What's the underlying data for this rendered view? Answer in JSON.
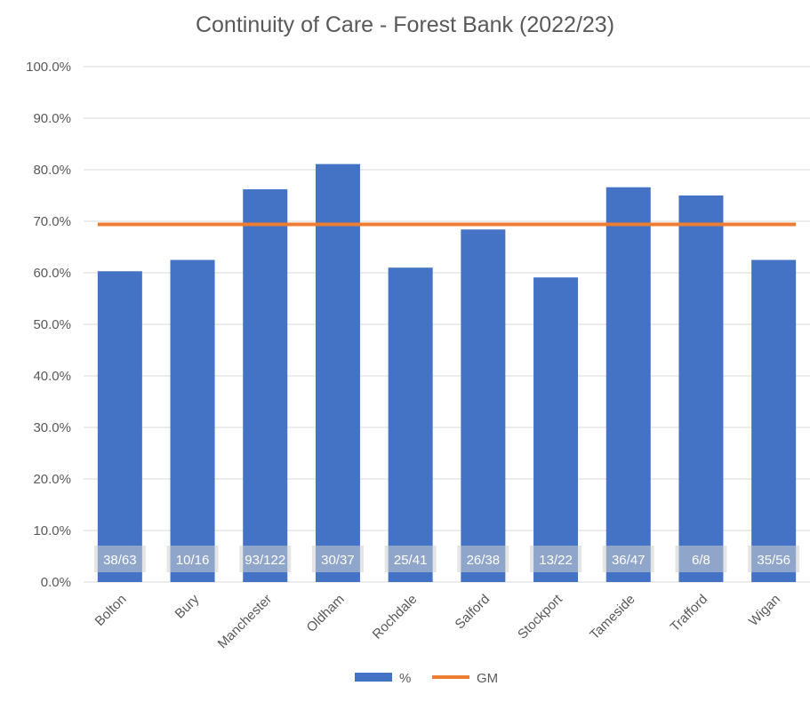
{
  "chart_data": {
    "type": "bar",
    "title": "Continuity of Care - Forest Bank (2022/23)",
    "categories": [
      "Bolton",
      "Bury",
      "Manchester",
      "Oldham",
      "Rochdale",
      "Salford",
      "Stockport",
      "Tameside",
      "Trafford",
      "Wigan"
    ],
    "series": [
      {
        "name": "%",
        "type": "bar",
        "color": "#4472C4",
        "values": [
          60.3,
          62.5,
          76.2,
          81.1,
          61.0,
          68.4,
          59.1,
          76.6,
          75.0,
          62.5
        ],
        "data_labels": [
          "38/63",
          "10/16",
          "93/122",
          "30/37",
          "25/41",
          "26/38",
          "13/22",
          "36/47",
          "6/8",
          "35/56"
        ]
      },
      {
        "name": "GM",
        "type": "line",
        "color": "#ED7D31",
        "values": [
          69.4,
          69.4,
          69.4,
          69.4,
          69.4,
          69.4,
          69.4,
          69.4,
          69.4,
          69.4
        ]
      }
    ],
    "y_ticks": [
      "0.0%",
      "10.0%",
      "20.0%",
      "30.0%",
      "40.0%",
      "50.0%",
      "60.0%",
      "70.0%",
      "80.0%",
      "90.0%",
      "100.0%"
    ],
    "ylim": [
      0,
      100
    ],
    "grid": true,
    "legend_position": "bottom"
  }
}
